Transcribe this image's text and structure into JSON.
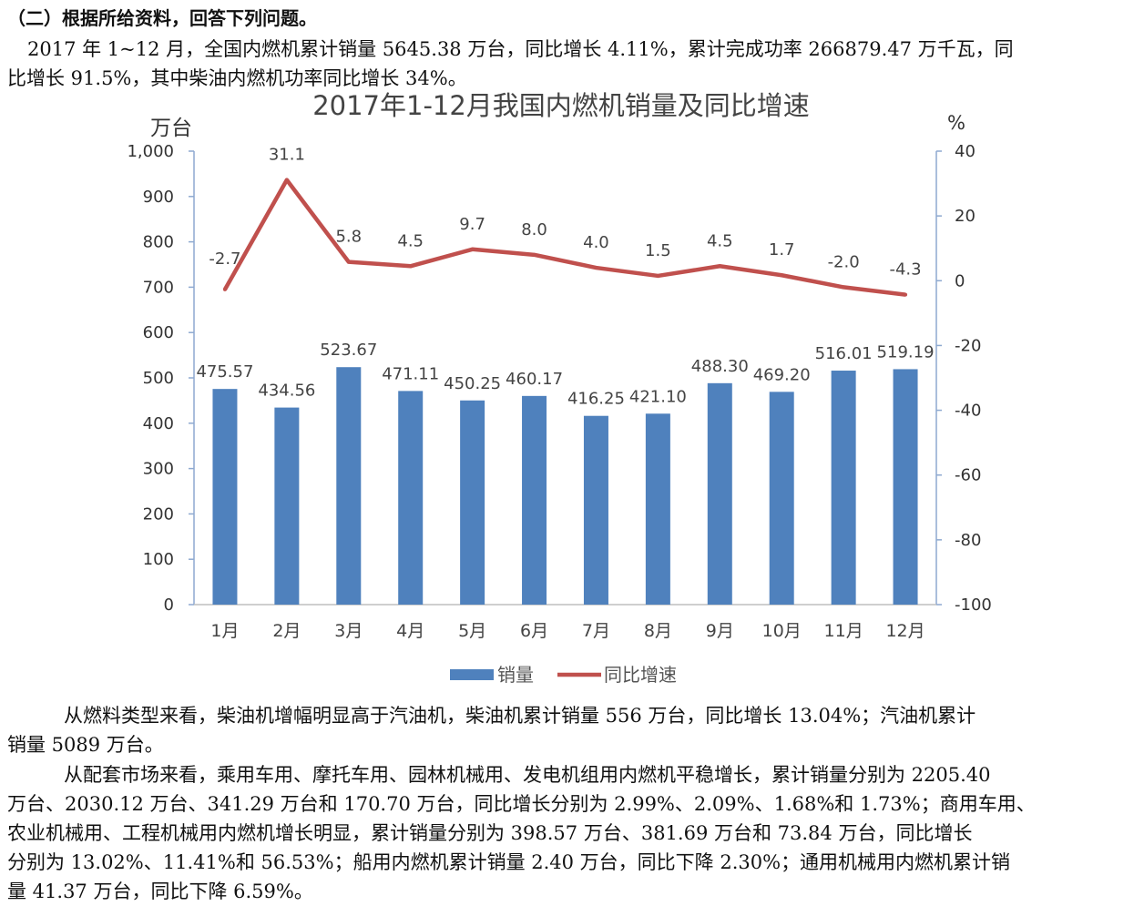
{
  "question": {
    "heading": "（二）根据所给资料，回答下列问题。",
    "intro_line1": "2017 年 1~12 月，全国内燃机累计销量 5645.38 万台，同比增长 4.11%，累计完成功率 266879.47 万千瓦，同",
    "intro_line2": "比增长 91.5%，其中柴油内燃机功率同比增长 34%。"
  },
  "chart_data": {
    "type": "bar+line",
    "title": "2017年1-12月我国内燃机销量及同比增速",
    "ylabel_left": "万台",
    "ylabel_right": "%",
    "categories": [
      "1月",
      "2月",
      "3月",
      "4月",
      "5月",
      "6月",
      "7月",
      "8月",
      "9月",
      "10月",
      "11月",
      "12月"
    ],
    "bar_labels": [
      "475.57",
      "434.56",
      "523.67",
      "471.11",
      "450.25",
      "460.17",
      "416.25",
      "421.10",
      "488.30",
      "469.20",
      "516.01",
      "519.19"
    ],
    "line_labels": [
      "-2.7",
      "31.1",
      "5.8",
      "4.5",
      "9.7",
      "8.0",
      "4.0",
      "1.5",
      "4.5",
      "1.7",
      "-2.0",
      "-4.3"
    ],
    "series": [
      {
        "name": "销量",
        "type": "bar",
        "axis": "left",
        "color": "#4f81bd",
        "values": [
          475.57,
          434.56,
          523.67,
          471.11,
          450.25,
          460.17,
          416.25,
          421.1,
          488.3,
          469.2,
          516.01,
          519.19
        ]
      },
      {
        "name": "同比增速",
        "type": "line",
        "axis": "right",
        "color": "#c0504d",
        "values": [
          -2.7,
          31.1,
          5.8,
          4.5,
          9.7,
          8.0,
          4.0,
          1.5,
          4.5,
          1.7,
          -2.0,
          -4.3
        ]
      }
    ],
    "ylim_left": [
      0,
      1000
    ],
    "ylim_right": [
      -100,
      40
    ],
    "yticks_left": [
      "1,000",
      "900",
      "800",
      "700",
      "600",
      "500",
      "400",
      "300",
      "200",
      "100",
      "0"
    ],
    "yticks_right": [
      "40",
      "20",
      "0",
      "-20",
      "-40",
      "-60",
      "-80",
      "-100"
    ],
    "grid": false,
    "legend": "bottom"
  },
  "text": {
    "p1_line1": "从燃料类型来看，柴油机增幅明显高于汽油机，柴油机累计销量 556 万台，同比增长 13.04%；汽油机累计",
    "p1_line2": "销量 5089 万台。",
    "p2_line1": "从配套市场来看，乘用车用、摩托车用、园林机械用、发电机组用内燃机平稳增长，累计销量分别为 2205.40",
    "p2_line2": "万台、2030.12 万台、341.29 万台和 170.70 万台，同比增长分别为 2.99%、2.09%、1.68%和 1.73%；商用车用、",
    "p2_line3": "农业机械用、工程机械用内燃机增长明显，累计销量分别为 398.57 万台、381.69 万台和 73.84 万台，同比增长",
    "p2_line4": "分别为 13.02%、11.41%和 56.53%；船用内燃机累计销量 2.40 万台，同比下降 2.30%；通用机械用内燃机累计销",
    "p2_line5": "量 41.37 万台，同比下降 6.59%。"
  }
}
